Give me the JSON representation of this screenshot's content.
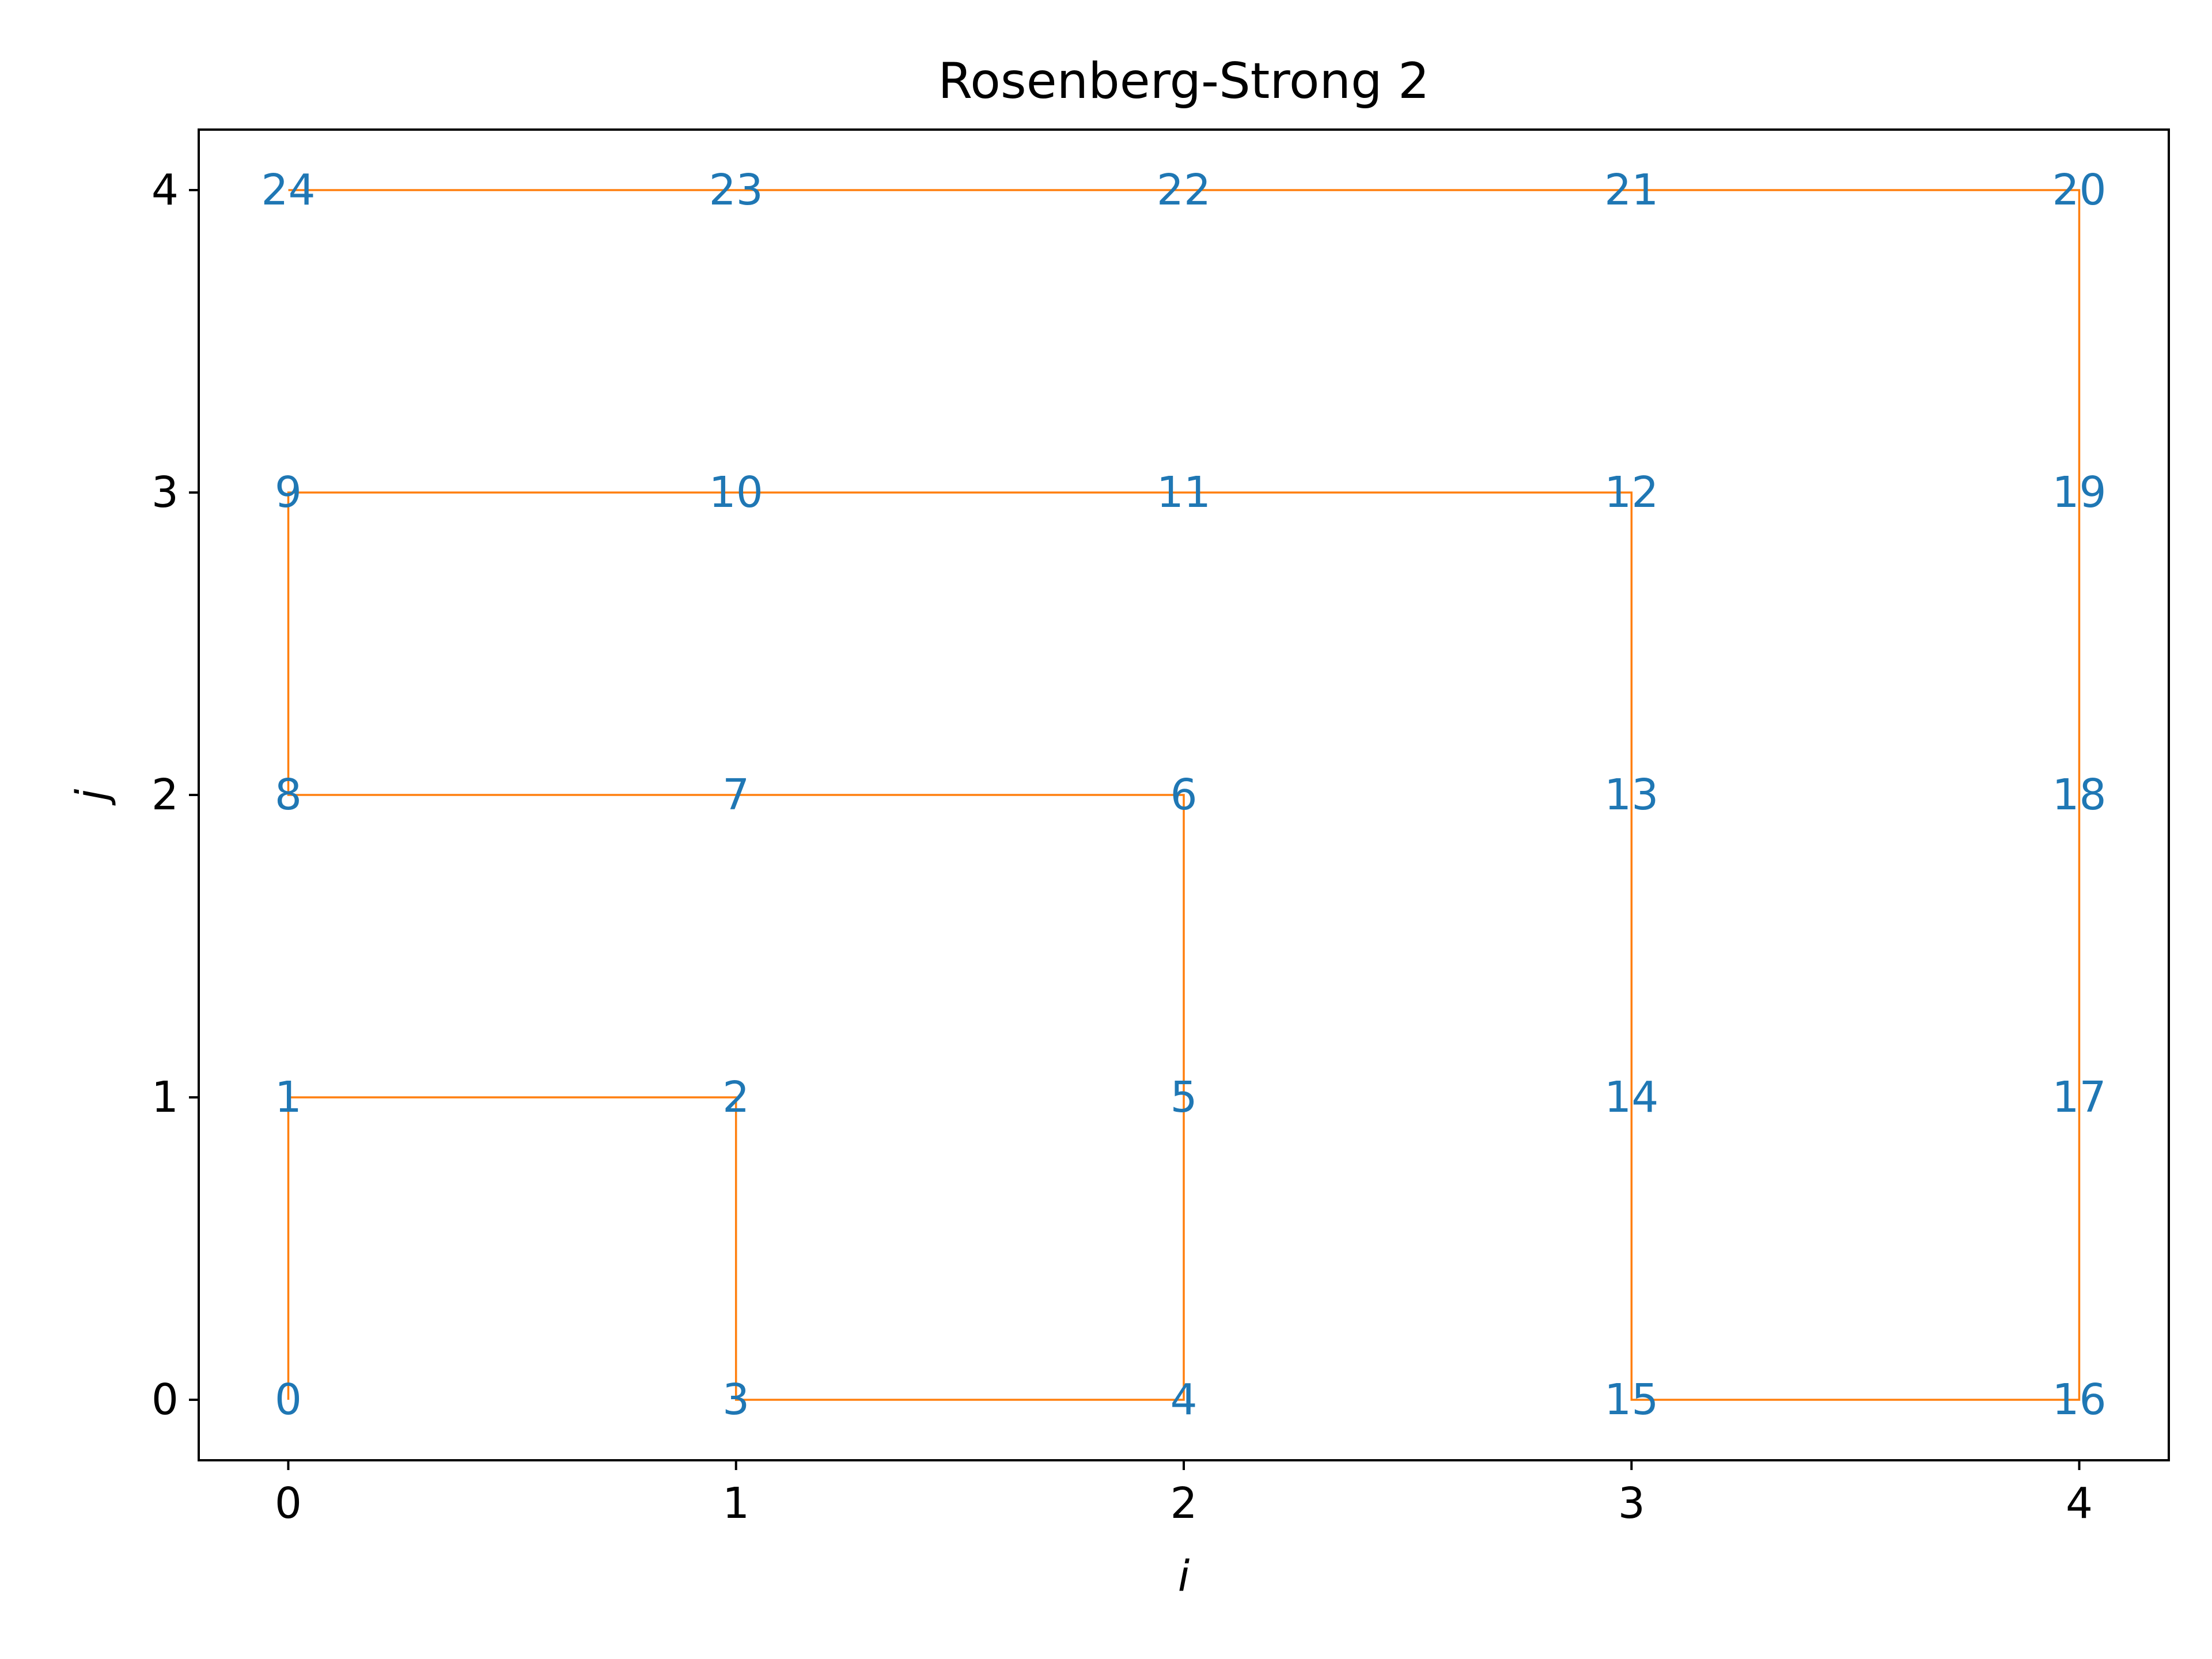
{
  "chart_data": {
    "type": "line",
    "title": "Rosenberg-Strong 2",
    "xlabel": "i",
    "ylabel": "j",
    "xlim": [
      -0.2,
      4.2
    ],
    "ylim": [
      -0.2,
      4.2
    ],
    "xticks": [
      0,
      1,
      2,
      3,
      4
    ],
    "yticks": [
      0,
      1,
      2,
      3,
      4
    ],
    "grid": false,
    "legend": "none",
    "colors": {
      "path": "#ff7f0e",
      "labels": "#1f77b4",
      "axes": "#000000"
    },
    "points": [
      {
        "x": 0,
        "y": 0,
        "label": "0"
      },
      {
        "x": 0,
        "y": 1,
        "label": "1"
      },
      {
        "x": 1,
        "y": 1,
        "label": "2"
      },
      {
        "x": 1,
        "y": 0,
        "label": "3"
      },
      {
        "x": 2,
        "y": 0,
        "label": "4"
      },
      {
        "x": 2,
        "y": 1,
        "label": "5"
      },
      {
        "x": 2,
        "y": 2,
        "label": "6"
      },
      {
        "x": 1,
        "y": 2,
        "label": "7"
      },
      {
        "x": 0,
        "y": 2,
        "label": "8"
      },
      {
        "x": 0,
        "y": 3,
        "label": "9"
      },
      {
        "x": 1,
        "y": 3,
        "label": "10"
      },
      {
        "x": 2,
        "y": 3,
        "label": "11"
      },
      {
        "x": 3,
        "y": 3,
        "label": "12"
      },
      {
        "x": 3,
        "y": 2,
        "label": "13"
      },
      {
        "x": 3,
        "y": 1,
        "label": "14"
      },
      {
        "x": 3,
        "y": 0,
        "label": "15"
      },
      {
        "x": 4,
        "y": 0,
        "label": "16"
      },
      {
        "x": 4,
        "y": 1,
        "label": "17"
      },
      {
        "x": 4,
        "y": 2,
        "label": "18"
      },
      {
        "x": 4,
        "y": 3,
        "label": "19"
      },
      {
        "x": 4,
        "y": 4,
        "label": "20"
      },
      {
        "x": 3,
        "y": 4,
        "label": "21"
      },
      {
        "x": 2,
        "y": 4,
        "label": "22"
      },
      {
        "x": 1,
        "y": 4,
        "label": "23"
      },
      {
        "x": 0,
        "y": 4,
        "label": "24"
      }
    ]
  }
}
